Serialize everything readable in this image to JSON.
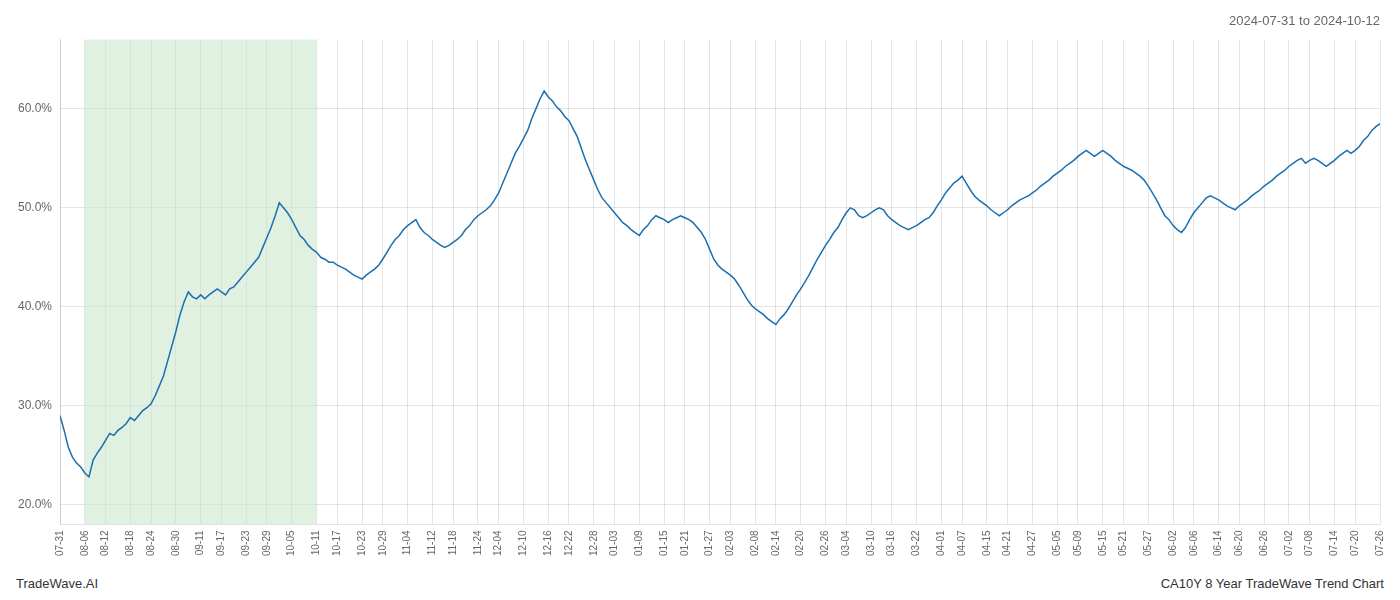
{
  "chart_data": {
    "type": "line",
    "title": "2024-07-31 to 2024-10-12",
    "annotations": [
      "TradeWave.AI",
      "CA10Y 8 Year TradeWave Trend Chart"
    ],
    "color": "#1a6faf",
    "grid": true,
    "ylim": [
      0.18,
      0.67
    ],
    "yticks": [
      {
        "value": 0.2,
        "label": "20.0%"
      },
      {
        "value": 0.3,
        "label": "30.0%"
      },
      {
        "value": 0.4,
        "label": "40.0%"
      },
      {
        "value": 0.5,
        "label": "50.0%"
      },
      {
        "value": 0.6,
        "label": "60.0%"
      }
    ],
    "shaded_range": {
      "start": "08-06",
      "end": "10-11",
      "color": "#c8e6c9"
    },
    "categories": [
      "07-31",
      null,
      null,
      null,
      null,
      null,
      "08-06",
      null,
      null,
      null,
      null,
      "08-12",
      null,
      null,
      null,
      null,
      null,
      "08-18",
      null,
      null,
      null,
      null,
      "08-24",
      null,
      null,
      null,
      null,
      null,
      "08-30",
      null,
      null,
      null,
      null,
      null,
      "09-11",
      null,
      null,
      null,
      null,
      "09-17",
      null,
      null,
      null,
      null,
      null,
      "09-23",
      null,
      null,
      null,
      null,
      "09-29",
      null,
      null,
      null,
      null,
      null,
      "10-05",
      null,
      null,
      null,
      null,
      null,
      "10-11",
      null,
      null,
      null,
      null,
      "10-17",
      null,
      null,
      null,
      null,
      null,
      "10-23",
      null,
      null,
      null,
      null,
      "10-29",
      null,
      null,
      null,
      null,
      null,
      "11-04",
      null,
      null,
      null,
      null,
      null,
      "11-12",
      null,
      null,
      null,
      null,
      "11-18",
      null,
      null,
      null,
      null,
      null,
      "11-24",
      null,
      null,
      null,
      null,
      "12-04",
      null,
      null,
      null,
      null,
      null,
      "12-10",
      null,
      null,
      null,
      null,
      null,
      "12-16",
      null,
      null,
      null,
      null,
      "12-22",
      null,
      null,
      null,
      null,
      null,
      "12-28",
      null,
      null,
      null,
      null,
      "01-03",
      null,
      null,
      null,
      null,
      null,
      "01-09",
      null,
      null,
      null,
      null,
      null,
      "01-15",
      null,
      null,
      null,
      null,
      "01-21",
      null,
      null,
      null,
      null,
      null,
      "01-27",
      null,
      null,
      null,
      null,
      "02-03",
      null,
      null,
      null,
      null,
      null,
      "02-08",
      null,
      null,
      null,
      null,
      "02-14",
      null,
      null,
      null,
      null,
      null,
      "02-20",
      null,
      null,
      null,
      null,
      null,
      "02-26",
      null,
      null,
      null,
      null,
      "03-04",
      null,
      null,
      null,
      null,
      null,
      "03-10",
      null,
      null,
      null,
      null,
      "03-16",
      null,
      null,
      null,
      null,
      null,
      "03-22",
      null,
      null,
      null,
      null,
      null,
      "04-01",
      null,
      null,
      null,
      null,
      "04-07",
      null,
      null,
      null,
      null,
      null,
      "04-15",
      null,
      null,
      null,
      null,
      "04-21",
      null,
      null,
      null,
      null,
      null,
      "04-27",
      null,
      null,
      null,
      null,
      null,
      "05-05",
      null,
      null,
      null,
      null,
      "05-09",
      null,
      null,
      null,
      null,
      null,
      "05-15",
      null,
      null,
      null,
      null,
      "05-21",
      null,
      null,
      null,
      null,
      null,
      "05-27",
      null,
      null,
      null,
      null,
      null,
      "06-02",
      null,
      null,
      null,
      null,
      "06-06",
      null,
      null,
      null,
      null,
      null,
      "06-14",
      null,
      null,
      null,
      null,
      "06-20",
      null,
      null,
      null,
      null,
      null,
      "06-26",
      null,
      null,
      null,
      null,
      null,
      "07-02",
      null,
      null,
      null,
      null,
      "07-08",
      null,
      null,
      null,
      null,
      null,
      "07-14",
      null,
      null,
      null,
      null,
      "07-20",
      null,
      null,
      null,
      null,
      null,
      "07-26"
    ],
    "values": [
      0.29,
      0.275,
      0.258,
      0.248,
      0.242,
      0.238,
      0.232,
      0.228,
      0.245,
      0.252,
      0.258,
      0.265,
      0.272,
      0.27,
      0.275,
      0.278,
      0.282,
      0.288,
      0.285,
      0.29,
      0.295,
      0.298,
      0.302,
      0.31,
      0.32,
      0.33,
      0.345,
      0.36,
      0.375,
      0.392,
      0.405,
      0.415,
      0.41,
      0.408,
      0.412,
      0.408,
      0.412,
      0.415,
      0.418,
      0.415,
      0.412,
      0.418,
      0.42,
      0.425,
      0.43,
      0.435,
      0.44,
      0.445,
      0.45,
      0.46,
      0.47,
      0.48,
      0.492,
      0.505,
      0.5,
      0.495,
      0.488,
      0.48,
      0.472,
      0.468,
      0.462,
      0.458,
      0.455,
      0.45,
      0.448,
      0.445,
      0.445,
      0.442,
      0.44,
      0.438,
      0.435,
      0.432,
      0.43,
      0.428,
      0.432,
      0.435,
      0.438,
      0.442,
      0.448,
      0.455,
      0.462,
      0.468,
      0.472,
      0.478,
      0.482,
      0.485,
      0.488,
      0.48,
      0.475,
      0.472,
      0.468,
      0.465,
      0.462,
      0.46,
      0.462,
      0.465,
      0.468,
      0.472,
      0.478,
      0.482,
      0.488,
      0.492,
      0.495,
      0.498,
      0.502,
      0.508,
      0.515,
      0.525,
      0.535,
      0.545,
      0.555,
      0.562,
      0.57,
      0.578,
      0.59,
      0.6,
      0.61,
      0.618,
      0.612,
      0.608,
      0.602,
      0.598,
      0.592,
      0.588,
      0.58,
      0.572,
      0.56,
      0.548,
      0.538,
      0.528,
      0.518,
      0.51,
      0.505,
      0.5,
      0.495,
      0.49,
      0.485,
      0.482,
      0.478,
      0.475,
      0.472,
      0.478,
      0.482,
      0.488,
      0.492,
      0.49,
      0.488,
      0.485,
      0.488,
      0.49,
      0.492,
      0.49,
      0.488,
      0.485,
      0.48,
      0.475,
      0.468,
      0.458,
      0.448,
      0.442,
      0.438,
      0.435,
      0.432,
      0.428,
      0.422,
      0.415,
      0.408,
      0.402,
      0.398,
      0.395,
      0.392,
      0.388,
      0.385,
      0.382,
      0.388,
      0.392,
      0.398,
      0.405,
      0.412,
      0.418,
      0.425,
      0.432,
      0.44,
      0.448,
      0.455,
      0.462,
      0.468,
      0.475,
      0.48,
      0.488,
      0.495,
      0.5,
      0.498,
      0.492,
      0.49,
      0.492,
      0.495,
      0.498,
      0.5,
      0.498,
      0.492,
      0.488,
      0.485,
      0.482,
      0.48,
      0.478,
      0.48,
      0.482,
      0.485,
      0.488,
      0.49,
      0.495,
      0.502,
      0.508,
      0.515,
      0.52,
      0.525,
      0.528,
      0.532,
      0.525,
      0.518,
      0.512,
      0.508,
      0.505,
      0.502,
      0.498,
      0.495,
      0.492,
      0.495,
      0.498,
      0.502,
      0.505,
      0.508,
      0.51,
      0.512,
      0.515,
      0.518,
      0.522,
      0.525,
      0.528,
      0.532,
      0.535,
      0.538,
      0.542,
      0.545,
      0.548,
      0.552,
      0.555,
      0.558,
      0.555,
      0.552,
      0.555,
      0.558,
      0.555,
      0.552,
      0.548,
      0.545,
      0.542,
      0.54,
      0.538,
      0.535,
      0.532,
      0.528,
      0.522,
      0.515,
      0.508,
      0.5,
      0.492,
      0.488,
      0.482,
      0.478,
      0.475,
      0.48,
      0.488,
      0.495,
      0.5,
      0.505,
      0.51,
      0.512,
      0.51,
      0.508,
      0.505,
      0.502,
      0.5,
      0.498,
      0.502,
      0.505,
      0.508,
      0.512,
      0.515,
      0.518,
      0.522,
      0.525,
      0.528,
      0.532,
      0.535,
      0.538,
      0.542,
      0.545,
      0.548,
      0.55,
      0.545,
      0.548,
      0.55,
      0.548,
      0.545,
      0.542,
      0.545,
      0.548,
      0.552,
      0.555,
      0.558,
      0.555,
      0.558,
      0.562,
      0.568,
      0.572,
      0.578,
      0.582,
      0.585
    ]
  }
}
